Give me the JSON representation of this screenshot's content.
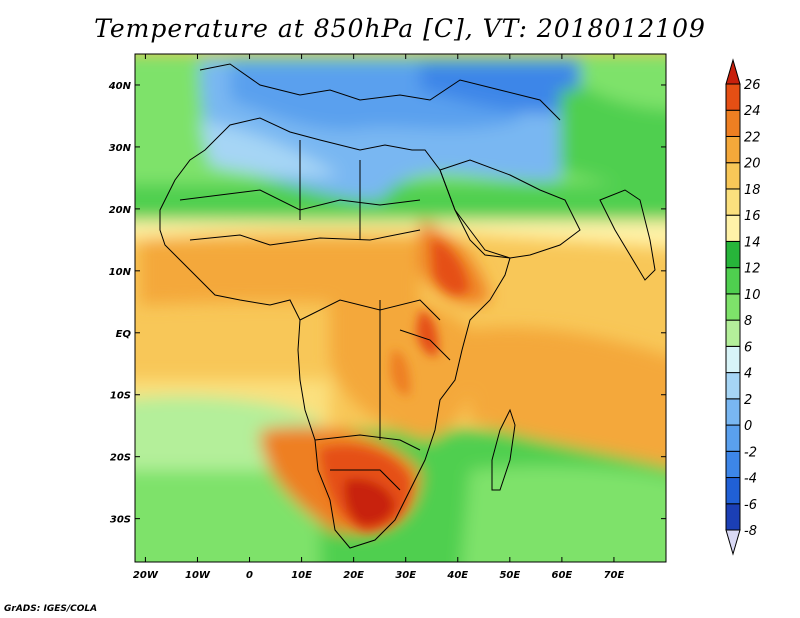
{
  "title": "Temperature at 850hPa [C], VT: 2018012109",
  "credit": "GrADS: IGES/COLA",
  "map": {
    "projection": "latlon",
    "lon_range": [
      -22,
      80
    ],
    "lat_range": [
      -37,
      45
    ],
    "lat_ticks": [
      {
        "value": 40,
        "label": "40N"
      },
      {
        "value": 30,
        "label": "30N"
      },
      {
        "value": 20,
        "label": "20N"
      },
      {
        "value": 10,
        "label": "10N"
      },
      {
        "value": 0,
        "label": "EQ"
      },
      {
        "value": -10,
        "label": "10S"
      },
      {
        "value": -20,
        "label": "20S"
      },
      {
        "value": -30,
        "label": "30S"
      }
    ],
    "lon_ticks": [
      {
        "value": -20,
        "label": "20W"
      },
      {
        "value": -10,
        "label": "10W"
      },
      {
        "value": 0,
        "label": "0"
      },
      {
        "value": 10,
        "label": "10E"
      },
      {
        "value": 20,
        "label": "20E"
      },
      {
        "value": 30,
        "label": "30E"
      },
      {
        "value": 40,
        "label": "40E"
      },
      {
        "value": 50,
        "label": "50E"
      },
      {
        "value": 60,
        "label": "60E"
      },
      {
        "value": 70,
        "label": "70E"
      }
    ],
    "variable": "temperature",
    "units": "C",
    "colorbar": {
      "levels": [
        "26",
        "24",
        "22",
        "20",
        "18",
        "16",
        "14",
        "12",
        "10",
        "8",
        "6",
        "4",
        "2",
        "0",
        "-2",
        "-4",
        "-6",
        "-8"
      ],
      "colors_bottom_to_top": [
        "#0b1a78",
        "#1b3fb5",
        "#2060d6",
        "#3d86e8",
        "#5aa0ee",
        "#79b7f2",
        "#a6d5f5",
        "#d8f4f8",
        "#b4ef9a",
        "#7ee26a",
        "#4fcf4f",
        "#27b53a",
        "#fff2a8",
        "#fbe07e",
        "#f8c758",
        "#f4a83a",
        "#ee7f22",
        "#e54f14",
        "#c8200c"
      ],
      "arrows": "both"
    },
    "warm_regions": [
      {
        "name": "southern-africa",
        "peak": "26"
      },
      {
        "name": "ethiopian-highlands",
        "peak": "24"
      },
      {
        "name": "east-africa-lakes",
        "peak": "24"
      }
    ]
  }
}
